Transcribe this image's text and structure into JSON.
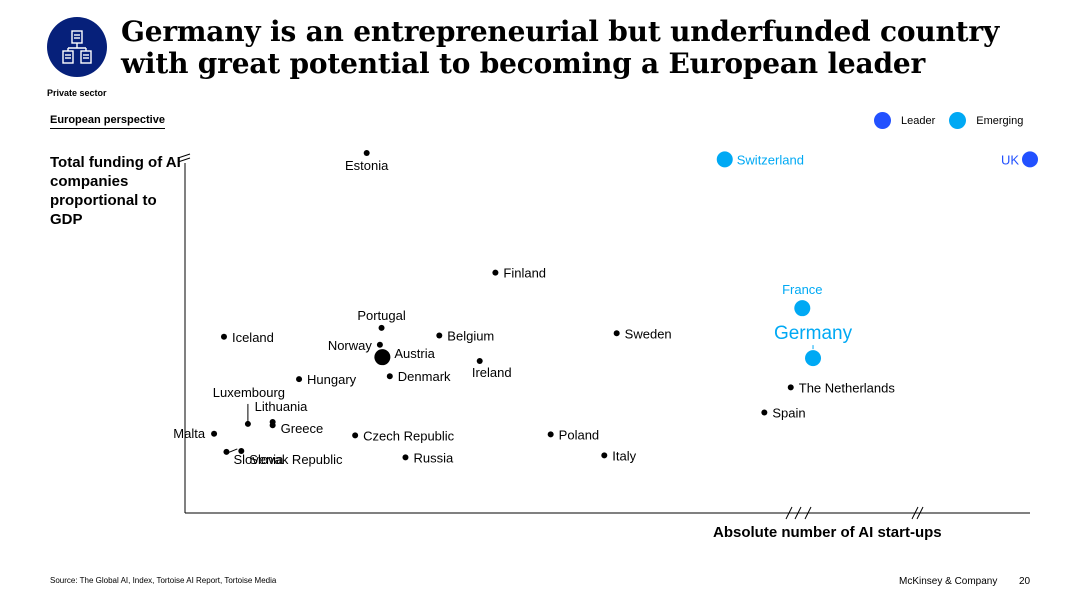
{
  "title": "Germany is an entrepreneurial but underfunded country with great potential to becoming a European leader",
  "section_label": "Private sector",
  "perspective_label": "European perspective",
  "logo_icon": "org-chart-icon",
  "legend": [
    {
      "label": "Leader",
      "color": "#2251ff"
    },
    {
      "label": "Emerging",
      "color": "#00a9f4"
    }
  ],
  "footer": {
    "source": "Source: The Global AI, Index, Tortoise AI Report, Tortoise Media",
    "brand": "McKinsey & Company",
    "page": "20"
  },
  "chart_data": {
    "type": "scatter",
    "title": "",
    "xlabel": "Absolute number of AI start-ups",
    "ylabel": "Total funding of AI companies proportional to GDP",
    "xlim": [
      0,
      100
    ],
    "ylim": [
      0,
      100
    ],
    "axis_breaks": {
      "x": true,
      "y": true
    },
    "grid": false,
    "legend_position": "top-right",
    "units": "relative index (no tick labels printed)",
    "points": [
      {
        "name": "Estonia",
        "x": 19.6,
        "y": 100,
        "group": "other"
      },
      {
        "name": "Switzerland",
        "x": 63.0,
        "y": 98,
        "group": "Emerging"
      },
      {
        "name": "UK",
        "x": 100,
        "y": 98,
        "group": "Leader"
      },
      {
        "name": "Finland",
        "x": 35.2,
        "y": 62.4,
        "group": "other"
      },
      {
        "name": "France",
        "x": 72.4,
        "y": 51.2,
        "group": "Emerging"
      },
      {
        "name": "Iceland",
        "x": 2.3,
        "y": 42.2,
        "group": "other"
      },
      {
        "name": "Portugal",
        "x": 21.4,
        "y": 45.0,
        "group": "other"
      },
      {
        "name": "Belgium",
        "x": 28.4,
        "y": 42.6,
        "group": "other"
      },
      {
        "name": "Sweden",
        "x": 49.9,
        "y": 43.3,
        "group": "other"
      },
      {
        "name": "Norway",
        "x": 21.2,
        "y": 39.7,
        "group": "other"
      },
      {
        "name": "Austria",
        "x": 21.5,
        "y": 35.8,
        "group": "other",
        "size": "large"
      },
      {
        "name": "Germany",
        "x": 73.7,
        "y": 35.5,
        "group": "Emerging"
      },
      {
        "name": "Ireland",
        "x": 33.3,
        "y": 34.6,
        "group": "other"
      },
      {
        "name": "Denmark",
        "x": 22.4,
        "y": 29.8,
        "group": "other"
      },
      {
        "name": "Hungary",
        "x": 11.4,
        "y": 28.9,
        "group": "other"
      },
      {
        "name": "The Netherlands",
        "x": 71.0,
        "y": 26.3,
        "group": "other"
      },
      {
        "name": "Spain",
        "x": 67.8,
        "y": 18.4,
        "group": "other"
      },
      {
        "name": "Luxembourg",
        "x": 5.2,
        "y": 14.8,
        "group": "other"
      },
      {
        "name": "Lithuania",
        "x": 8.2,
        "y": 15.4,
        "group": "other"
      },
      {
        "name": "Greece",
        "x": 8.2,
        "y": 14.4,
        "group": "other"
      },
      {
        "name": "Malta",
        "x": 1.1,
        "y": 11.7,
        "group": "other"
      },
      {
        "name": "Czech Republic",
        "x": 18.2,
        "y": 11.2,
        "group": "other"
      },
      {
        "name": "Poland",
        "x": 41.9,
        "y": 11.5,
        "group": "other"
      },
      {
        "name": "Slovenia",
        "x": 2.6,
        "y": 6.0,
        "group": "other"
      },
      {
        "name": "Slovak Republic",
        "x": 4.4,
        "y": 6.3,
        "group": "other"
      },
      {
        "name": "Russia",
        "x": 24.3,
        "y": 4.3,
        "group": "other"
      },
      {
        "name": "Italy",
        "x": 48.4,
        "y": 4.9,
        "group": "other"
      }
    ]
  }
}
